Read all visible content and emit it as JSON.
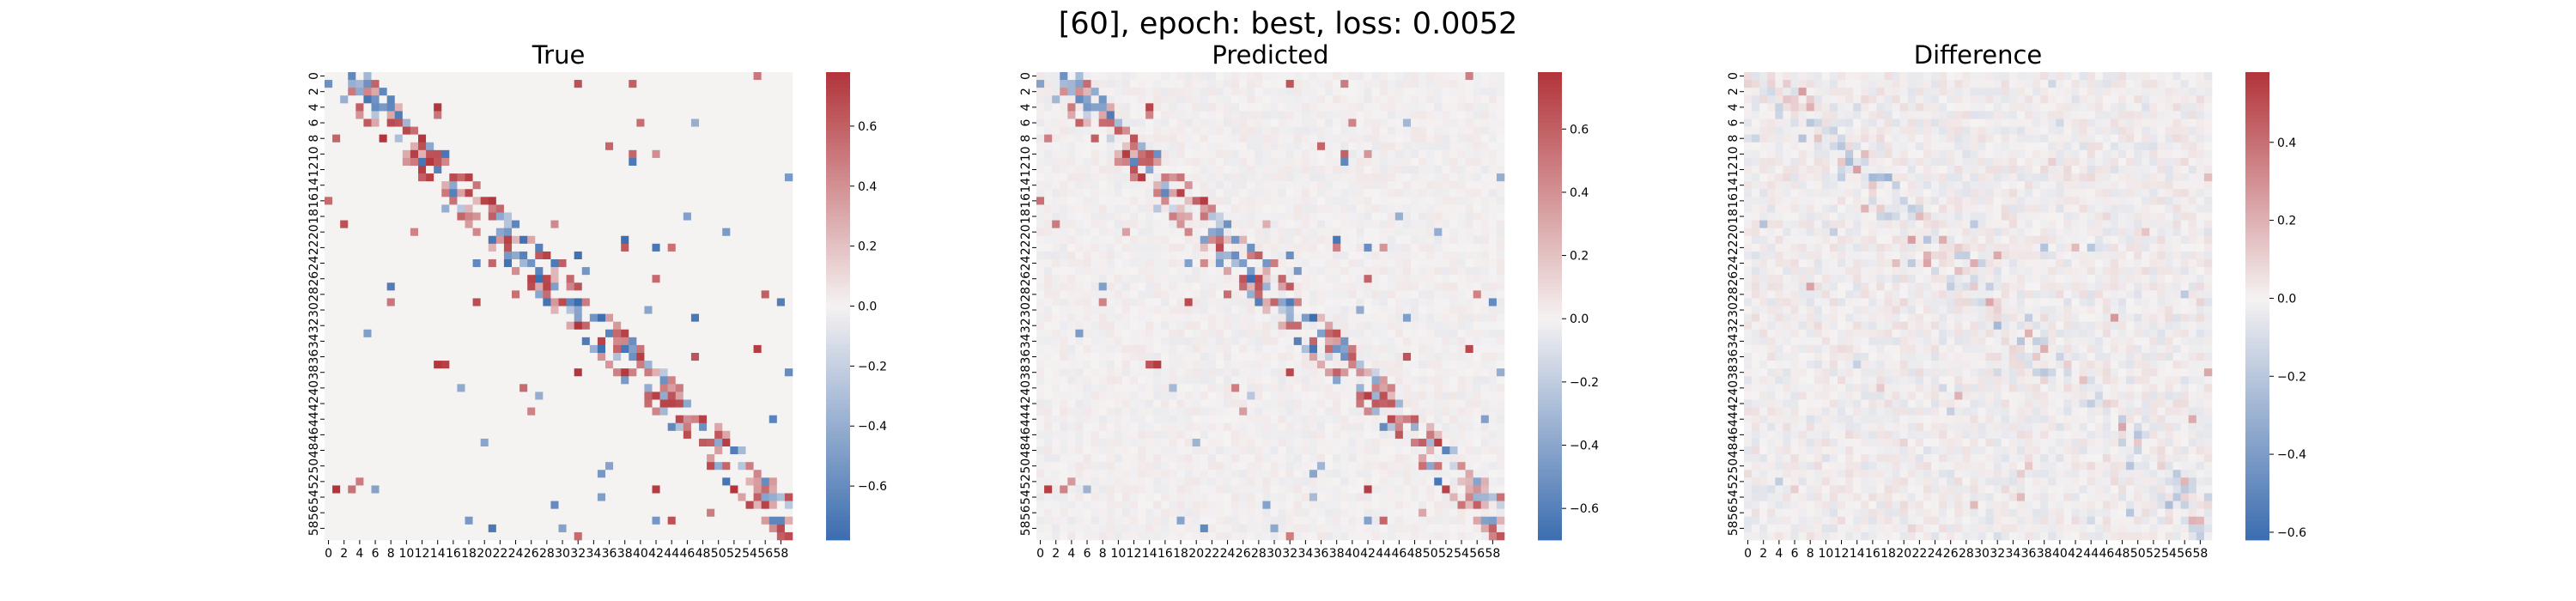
{
  "figure": {
    "title": "[60], epoch: best, loss: 0.0052"
  },
  "colors": {
    "negative": "#3b6db0",
    "center": "#f5f2f2",
    "positive": "#b2343a"
  },
  "chart_data": [
    {
      "type": "heatmap",
      "title": "True",
      "n": 60,
      "tick_labels": [
        "0",
        "2",
        "4",
        "6",
        "8",
        "10",
        "12",
        "14",
        "16",
        "18",
        "20",
        "22",
        "24",
        "26",
        "28",
        "30",
        "32",
        "34",
        "36",
        "38",
        "40",
        "42",
        "44",
        "46",
        "48",
        "50",
        "52",
        "54",
        "56",
        "58"
      ],
      "colorbar": {
        "min": -0.78,
        "max": 0.78,
        "ticks": [
          -0.6,
          -0.4,
          -0.2,
          0.0,
          0.2,
          0.4,
          0.6
        ],
        "tick_labels": [
          "−0.6",
          "−0.4",
          "−0.2",
          "0.0",
          "0.2",
          "0.4",
          "0.6"
        ]
      },
      "band_pattern": "near-diagonal band of strong positive (red) and negative (blue) values with sparse off-diagonal entries"
    },
    {
      "type": "heatmap",
      "title": "Predicted",
      "n": 60,
      "tick_labels": [
        "0",
        "2",
        "4",
        "6",
        "8",
        "10",
        "12",
        "14",
        "16",
        "18",
        "20",
        "22",
        "24",
        "26",
        "28",
        "30",
        "32",
        "34",
        "36",
        "38",
        "40",
        "42",
        "44",
        "46",
        "48",
        "50",
        "52",
        "54",
        "56",
        "58"
      ],
      "colorbar": {
        "min": -0.7,
        "max": 0.78,
        "ticks": [
          -0.6,
          -0.4,
          -0.2,
          0.0,
          0.2,
          0.4,
          0.6
        ],
        "tick_labels": [
          "−0.6",
          "−0.4",
          "−0.2",
          "0.0",
          "0.2",
          "0.4",
          "0.6"
        ]
      },
      "band_pattern": "near-diagonal band similar to True with additional faint noise everywhere"
    },
    {
      "type": "heatmap",
      "title": "Difference",
      "n": 60,
      "tick_labels": [
        "0",
        "2",
        "4",
        "6",
        "8",
        "10",
        "12",
        "14",
        "16",
        "18",
        "20",
        "22",
        "24",
        "26",
        "28",
        "30",
        "32",
        "34",
        "36",
        "38",
        "40",
        "42",
        "44",
        "46",
        "48",
        "50",
        "52",
        "54",
        "56",
        "58"
      ],
      "colorbar": {
        "min": -0.62,
        "max": 0.58,
        "ticks": [
          -0.6,
          -0.4,
          -0.2,
          0.0,
          0.2,
          0.4
        ],
        "tick_labels": [
          "−0.6",
          "−0.4",
          "−0.2",
          "0.0",
          "0.2",
          "0.4"
        ]
      },
      "band_pattern": "mostly near-zero with faint diagonal structure and a few isolated strong cells"
    }
  ]
}
